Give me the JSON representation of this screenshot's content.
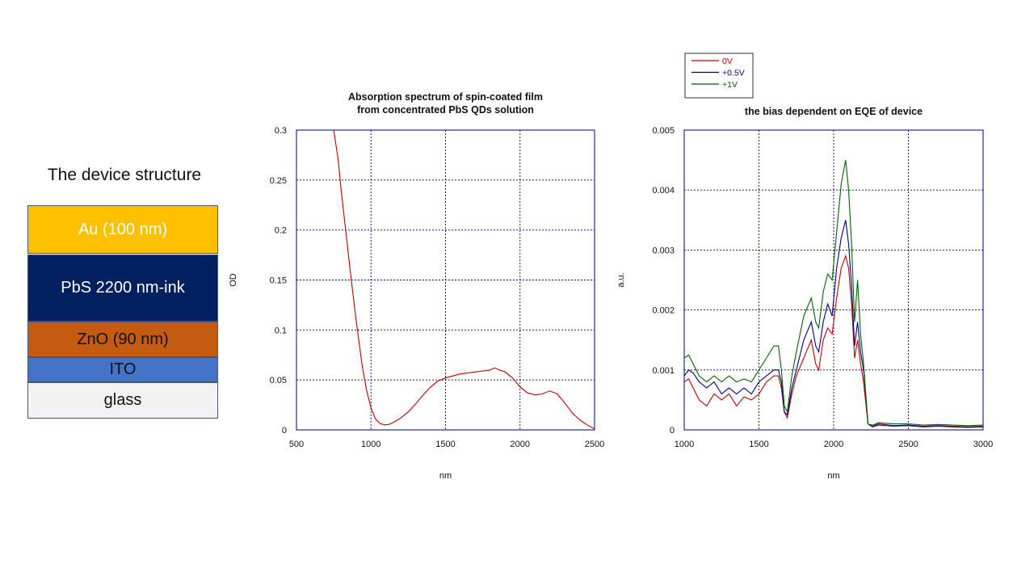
{
  "device": {
    "title": "The device structure",
    "layers": [
      {
        "label": "Au (100 nm)",
        "color": "#FFC000",
        "text_color": "#FFFFFF"
      },
      {
        "label": "PbS 2200 nm-ink",
        "color": "#002060",
        "text_color": "#FFFFFF"
      },
      {
        "label": "ZnO (90 nm)",
        "color": "#C55A11",
        "text_color": "#111111"
      },
      {
        "label": "ITO",
        "color": "#4472C4",
        "text_color": "#111111"
      },
      {
        "label": "glass",
        "color": "#F2F2F2",
        "text_color": "#111111"
      }
    ]
  },
  "chart_data": [
    {
      "type": "line",
      "title": "Absorption spectrum of spin-coated film\nfrom concentrated PbS QDs solution",
      "xlabel": "nm",
      "ylabel": "OD",
      "xlim": [
        500,
        2500
      ],
      "ylim": [
        0,
        0.3
      ],
      "xticks": [
        500,
        1000,
        1500,
        2000,
        2500
      ],
      "yticks": [
        0,
        0.05,
        0.1,
        0.15,
        0.2,
        0.25,
        0.3
      ],
      "ytick_labels": [
        "0",
        "0.05",
        "0.1",
        "0.15",
        "0.2",
        "0.25",
        "0.3"
      ],
      "grid": true,
      "series": [
        {
          "color": "#C00000",
          "x": [
            750,
            780,
            800,
            830,
            860,
            900,
            940,
            970,
            1000,
            1030,
            1060,
            1090,
            1120,
            1150,
            1200,
            1250,
            1300,
            1350,
            1400,
            1450,
            1500,
            1550,
            1600,
            1650,
            1700,
            1750,
            1800,
            1830,
            1860,
            1900,
            1950,
            2000,
            2050,
            2100,
            2150,
            2200,
            2250,
            2300,
            2350,
            2400,
            2450,
            2500
          ],
          "y": [
            0.3,
            0.27,
            0.24,
            0.2,
            0.16,
            0.11,
            0.065,
            0.04,
            0.022,
            0.011,
            0.0065,
            0.005,
            0.0055,
            0.0075,
            0.012,
            0.018,
            0.026,
            0.035,
            0.043,
            0.049,
            0.052,
            0.054,
            0.056,
            0.057,
            0.058,
            0.059,
            0.06,
            0.062,
            0.06,
            0.058,
            0.052,
            0.043,
            0.037,
            0.035,
            0.036,
            0.039,
            0.036,
            0.027,
            0.017,
            0.01,
            0.005,
            0.001
          ]
        }
      ]
    },
    {
      "type": "line",
      "title": "the bias dependent on EQE of device",
      "xlabel": "nm",
      "ylabel": "a.u.",
      "xlim": [
        1000,
        3000
      ],
      "ylim": [
        0,
        0.005
      ],
      "xticks": [
        1000,
        1500,
        2000,
        2500,
        3000
      ],
      "yticks": [
        0,
        0.001,
        0.002,
        0.003,
        0.004,
        0.005
      ],
      "ytick_labels": [
        "0",
        "0.001",
        "0.002",
        "0.003",
        "0.004",
        "0.005"
      ],
      "grid": true,
      "legend_position": "top-left, outside plot",
      "series": [
        {
          "name": "0V",
          "color": "#C00000",
          "x": [
            1000,
            1030,
            1060,
            1100,
            1150,
            1200,
            1250,
            1300,
            1350,
            1400,
            1450,
            1500,
            1550,
            1600,
            1630,
            1650,
            1670,
            1690,
            1720,
            1750,
            1800,
            1850,
            1880,
            1900,
            1930,
            1960,
            1990,
            2020,
            2050,
            2080,
            2100,
            2120,
            2140,
            2160,
            2180,
            2200,
            2230,
            2260,
            2300,
            2400,
            2500,
            2600,
            2700,
            2800,
            2900,
            3000
          ],
          "y": [
            0.0008,
            0.00085,
            0.0007,
            0.0005,
            0.0004,
            0.0006,
            0.0005,
            0.0006,
            0.0004,
            0.00055,
            0.0005,
            0.0006,
            0.0008,
            0.0009,
            0.0009,
            0.0007,
            0.0003,
            0.0002,
            0.0006,
            0.0009,
            0.0012,
            0.0015,
            0.0011,
            0.001,
            0.0015,
            0.0017,
            0.0016,
            0.0022,
            0.0027,
            0.0029,
            0.0027,
            0.0021,
            0.0012,
            0.0015,
            0.0011,
            0.0008,
            0.0001,
            5e-05,
            8e-05,
            6e-05,
            7e-05,
            5e-05,
            6e-05,
            5e-05,
            4e-05,
            5e-05
          ]
        },
        {
          "name": "+0.5V",
          "color": "#000080",
          "x": [
            1000,
            1030,
            1060,
            1100,
            1150,
            1200,
            1250,
            1300,
            1350,
            1400,
            1450,
            1500,
            1550,
            1600,
            1630,
            1650,
            1670,
            1690,
            1720,
            1750,
            1800,
            1850,
            1880,
            1900,
            1930,
            1960,
            1990,
            2020,
            2050,
            2080,
            2100,
            2120,
            2140,
            2160,
            2180,
            2200,
            2230,
            2260,
            2300,
            2400,
            2500,
            2600,
            2700,
            2800,
            2900,
            3000
          ],
          "y": [
            0.0009,
            0.001,
            0.00095,
            0.0008,
            0.0007,
            0.0008,
            0.0006,
            0.0007,
            0.0006,
            0.0007,
            0.0006,
            0.0008,
            0.0009,
            0.001,
            0.001,
            0.0008,
            0.0003,
            0.00025,
            0.0007,
            0.001,
            0.0015,
            0.0018,
            0.0014,
            0.0013,
            0.0018,
            0.0021,
            0.0019,
            0.0027,
            0.0032,
            0.0035,
            0.0031,
            0.0024,
            0.0014,
            0.0018,
            0.0013,
            0.001,
            0.0001,
            6e-05,
            0.0001,
            7e-05,
            8e-05,
            6e-05,
            7e-05,
            6e-05,
            5e-05,
            6e-05
          ]
        },
        {
          "name": "+1V",
          "color": "#006400",
          "x": [
            1000,
            1030,
            1060,
            1100,
            1150,
            1200,
            1250,
            1300,
            1350,
            1400,
            1450,
            1500,
            1550,
            1600,
            1630,
            1650,
            1670,
            1690,
            1720,
            1750,
            1800,
            1850,
            1880,
            1900,
            1930,
            1960,
            1990,
            2020,
            2050,
            2080,
            2100,
            2120,
            2140,
            2160,
            2180,
            2200,
            2230,
            2260,
            2300,
            2400,
            2500,
            2600,
            2700,
            2800,
            2900,
            3000
          ],
          "y": [
            0.0012,
            0.00125,
            0.0011,
            0.0009,
            0.0008,
            0.0009,
            0.0008,
            0.0009,
            0.0008,
            0.00085,
            0.0008,
            0.001,
            0.0012,
            0.0014,
            0.0014,
            0.001,
            0.0004,
            0.0003,
            0.0009,
            0.0013,
            0.0019,
            0.0022,
            0.0018,
            0.0017,
            0.0023,
            0.0026,
            0.0025,
            0.0033,
            0.0041,
            0.0045,
            0.004,
            0.0031,
            0.0018,
            0.0025,
            0.0016,
            0.0011,
            0.0001,
            8e-05,
            0.00012,
            0.0001,
            0.0001,
            8e-05,
            9e-05,
            8e-05,
            7e-05,
            8e-05
          ]
        }
      ]
    }
  ]
}
